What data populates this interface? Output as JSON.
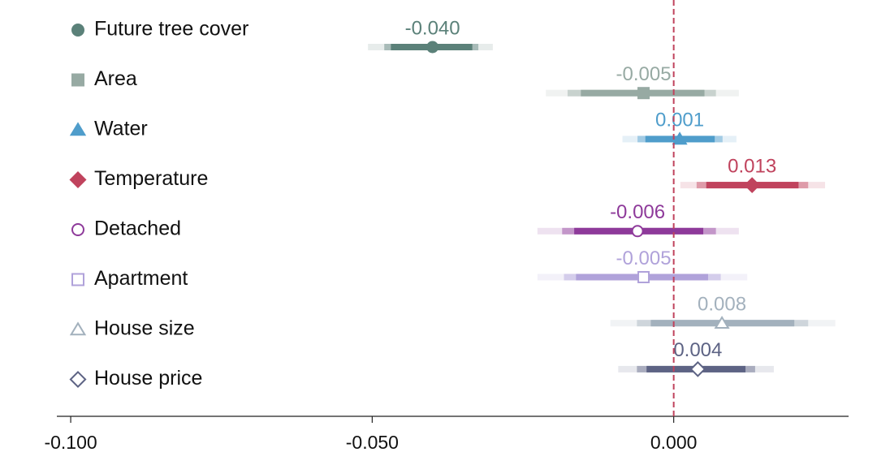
{
  "chart_data": {
    "type": "forest",
    "xlim": [
      -0.1023,
      0.029
    ],
    "xticks": [
      {
        "value": -0.1,
        "label": "-0.100"
      },
      {
        "value": -0.05,
        "label": "-0.050"
      },
      {
        "value": 0,
        "label": "0.000"
      }
    ],
    "vline": 0,
    "vline_color": "#c0435d",
    "series": [
      {
        "name": "Future tree cover",
        "color": "#5b8179",
        "marker": "circle",
        "filled": true,
        "values": [
          -0.04
        ],
        "value_labels": [
          "-0.040"
        ],
        "ci": [
          [
            -0.0507,
            -0.03
          ],
          [
            -0.048,
            -0.0324
          ],
          [
            -0.0469,
            -0.0334
          ]
        ]
      },
      {
        "name": "Area",
        "color": "#97aaa3",
        "marker": "square",
        "filled": true,
        "values": [
          -0.005
        ],
        "value_labels": [
          "-0.005"
        ],
        "ci": [
          [
            -0.0212,
            0.0108
          ],
          [
            -0.0176,
            0.007
          ],
          [
            -0.0154,
            0.0051
          ]
        ]
      },
      {
        "name": "Water",
        "color": "#4f9dcb",
        "marker": "triangle",
        "filled": true,
        "values": [
          0.001
        ],
        "value_labels": [
          "0.001"
        ],
        "ci": [
          [
            -0.0085,
            0.0104
          ],
          [
            -0.006,
            0.0081
          ],
          [
            -0.0047,
            0.0068
          ]
        ]
      },
      {
        "name": "Temperature",
        "color": "#c0435d",
        "marker": "diamond",
        "filled": true,
        "values": [
          0.013
        ],
        "value_labels": [
          "0.013"
        ],
        "ci": [
          [
            0.0011,
            0.0251
          ],
          [
            0.0038,
            0.0223
          ],
          [
            0.0054,
            0.0207
          ]
        ]
      },
      {
        "name": "Detached",
        "color": "#8e3a9a",
        "marker": "circle",
        "filled": false,
        "values": [
          -0.006
        ],
        "value_labels": [
          "-0.006"
        ],
        "ci": [
          [
            -0.0226,
            0.0108
          ],
          [
            -0.0185,
            0.007
          ],
          [
            -0.0165,
            0.0049
          ]
        ]
      },
      {
        "name": "Apartment",
        "color": "#b0a2da",
        "marker": "square",
        "filled": false,
        "values": [
          -0.005
        ],
        "value_labels": [
          "-0.005"
        ],
        "ci": [
          [
            -0.0226,
            0.0122
          ],
          [
            -0.0182,
            0.0078
          ],
          [
            -0.0162,
            0.0057
          ]
        ]
      },
      {
        "name": "House size",
        "color": "#a3b1bd",
        "marker": "triangle",
        "filled": false,
        "values": [
          0.008
        ],
        "value_labels": [
          "0.008"
        ],
        "ci": [
          [
            -0.0105,
            0.0268
          ],
          [
            -0.0061,
            0.0223
          ],
          [
            -0.0038,
            0.02
          ]
        ]
      },
      {
        "name": "House price",
        "color": "#5d6384",
        "marker": "diamond",
        "filled": false,
        "values": [
          0.004
        ],
        "value_labels": [
          "0.004"
        ],
        "ci": [
          [
            -0.0092,
            0.0166
          ],
          [
            -0.0061,
            0.0135
          ],
          [
            -0.0045,
            0.0119
          ]
        ]
      }
    ]
  }
}
